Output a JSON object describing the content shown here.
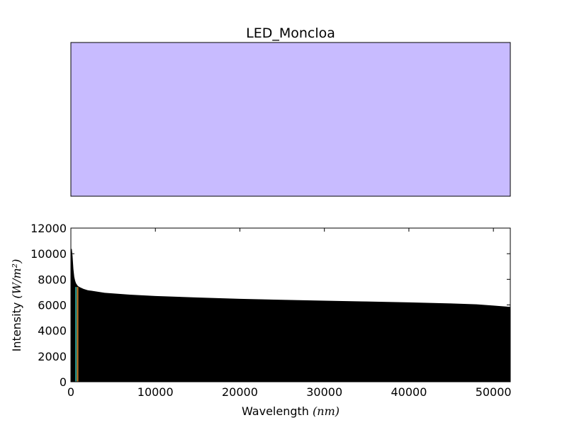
{
  "colors": {
    "swatch_fill": "#c8bbff",
    "spectrum_fill": "#000000",
    "marker_teal": "#2aa198",
    "marker_orange": "#c87d2a",
    "frame": "#000000",
    "background": "#ffffff"
  },
  "chart_data": [
    {
      "type": "area",
      "panel": "color-swatch",
      "title": "LED_Moncloa",
      "swatch_color": "#c8bbff",
      "xlabel": "",
      "ylabel": ""
    },
    {
      "type": "area",
      "panel": "spectrum",
      "title": "",
      "xlabel": "Wavelength",
      "xlabel_unit": "(nm)",
      "ylabel": "Intensity",
      "ylabel_unit": "(W/m²)",
      "xlim": [
        0,
        52000
      ],
      "ylim": [
        0,
        12000
      ],
      "xticks": [
        0,
        10000,
        20000,
        30000,
        40000,
        50000
      ],
      "yticks": [
        0,
        2000,
        4000,
        6000,
        8000,
        10000,
        12000
      ],
      "grid": false,
      "series": [
        {
          "x": [
            0,
            100,
            200,
            300,
            400,
            500,
            600,
            800,
            1000,
            1500,
            2000,
            3000,
            4000,
            5000,
            7000,
            10000,
            15000,
            20000,
            25000,
            30000,
            35000,
            40000,
            45000,
            48000,
            50000,
            52000
          ],
          "values": [
            10300,
            10400,
            9800,
            8800,
            8200,
            7900,
            7700,
            7500,
            7400,
            7250,
            7150,
            7050,
            6950,
            6900,
            6800,
            6700,
            6580,
            6480,
            6400,
            6330,
            6270,
            6200,
            6120,
            6050,
            5950,
            5850
          ]
        }
      ],
      "markers": [
        {
          "x": 600,
          "color": "#2aa198"
        },
        {
          "x": 800,
          "color": "#c87d2a"
        }
      ]
    }
  ]
}
